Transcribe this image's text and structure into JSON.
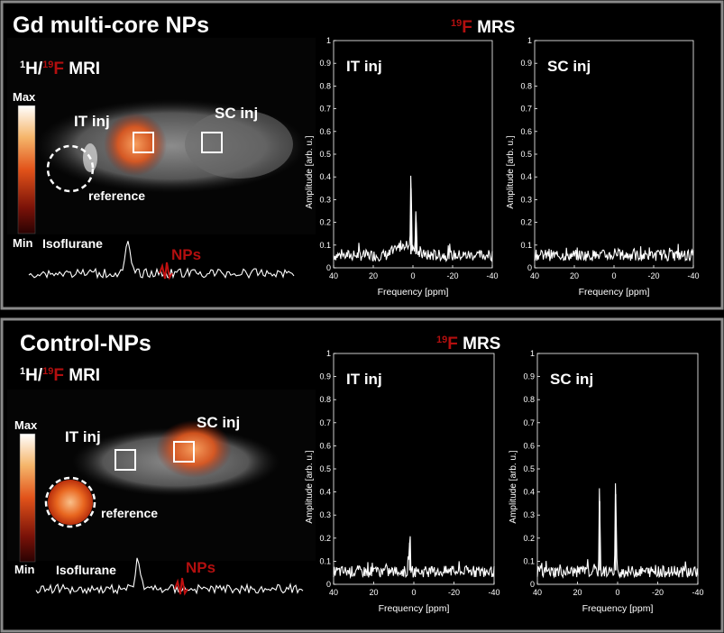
{
  "panels": [
    {
      "title": "Gd multi-core NPs",
      "mri_label": {
        "sup1": "1",
        "h": "H/",
        "sup2": "19",
        "f": "F",
        "rest": " MRI"
      },
      "mrs_label": {
        "sup": "19",
        "f": "F",
        "rest": " MRS"
      },
      "colorbar": {
        "max": "Max",
        "min": "Min"
      },
      "image_labels": {
        "it": "IT inj",
        "sc": "SC inj",
        "reference": "reference"
      },
      "spectrum_labels": {
        "isoflurane": "Isoflurane",
        "nps": "NPs"
      },
      "plots": [
        {
          "title": "IT inj",
          "peaks": [
            {
              "ppm": 1,
              "amp": 0.35
            },
            {
              "ppm": -1.5,
              "amp": 0.2
            }
          ],
          "hump": {
            "ppm": 4,
            "amp": 0.05
          }
        },
        {
          "title": "SC inj",
          "peaks": [],
          "hump": null
        }
      ]
    },
    {
      "title": "Control-NPs",
      "mri_label": {
        "sup1": "1",
        "h": "H/",
        "sup2": "19",
        "f": "F",
        "rest": " MRI"
      },
      "mrs_label": {
        "sup": "19",
        "f": "F",
        "rest": " MRS"
      },
      "colorbar": {
        "max": "Max",
        "min": "Min"
      },
      "image_labels": {
        "it": "IT inj",
        "sc": "SC inj",
        "reference": "reference"
      },
      "spectrum_labels": {
        "isoflurane": "Isoflurane",
        "nps": "NPs"
      },
      "plots": [
        {
          "title": "IT inj",
          "peaks": [
            {
              "ppm": 2,
              "amp": 0.18
            }
          ],
          "hump": null
        },
        {
          "title": "SC inj",
          "peaks": [
            {
              "ppm": 9,
              "amp": 0.36
            },
            {
              "ppm": 1,
              "amp": 0.39
            }
          ],
          "hump": null
        }
      ]
    }
  ],
  "chart_data": {
    "type": "line",
    "xlabel": "Frequency [ppm]",
    "ylabel": "Amplitude [arb. u.]",
    "xlim": [
      40,
      -40
    ],
    "ylim": [
      0,
      1
    ],
    "xticks": [
      "40",
      "20",
      "0",
      "-20",
      "-40"
    ],
    "yticks": [
      "0",
      "0.1",
      "0.2",
      "0.3",
      "0.4",
      "0.5",
      "0.6",
      "0.7",
      "0.8",
      "0.9",
      "1"
    ]
  },
  "colors": {
    "accent_red": "#b30f0f",
    "frame": "#8a8a8a"
  }
}
